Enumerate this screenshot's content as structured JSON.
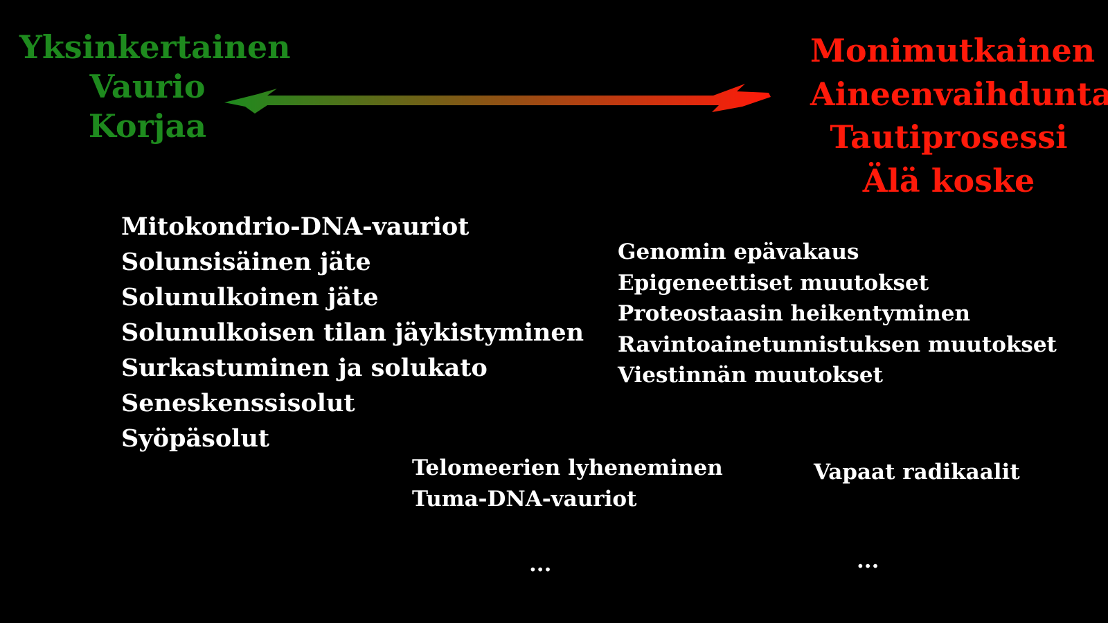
{
  "left_pole": {
    "color": "#1e8a1e",
    "lines": [
      "Yksinkertainen",
      "Vaurio",
      "Korjaa"
    ]
  },
  "right_pole": {
    "color": "#ff1a0a",
    "lines": [
      "Monimutkainen",
      "Aineenvaihdunta",
      "Tautiprosessi",
      "Älä koske"
    ]
  },
  "arrow": {
    "color_start": "#1e8a1e",
    "color_end": "#ff1a0a"
  },
  "list_left": [
    "Mitokondrio-DNA-vauriot",
    "Solunsisäinen jäte",
    "Solunulkoinen jäte",
    "Solunulkoisen tilan jäykistyminen",
    "Surkastuminen ja solukato",
    "Seneskenssisolut",
    "Syöpäsolut"
  ],
  "list_right": [
    "Genomin epävakaus",
    "Epigeneettiset muutokset",
    "Proteostaasin heikentyminen",
    "Ravintoainetunnistuksen muutokset",
    "Viestinnän muutokset"
  ],
  "list_bottom": [
    "Telomeerien lyheneminen",
    "Tuma-DNA-vauriot"
  ],
  "list_radicals": [
    "Vapaat radikaalit"
  ],
  "ellipsis_left": "...",
  "ellipsis_right": "..."
}
